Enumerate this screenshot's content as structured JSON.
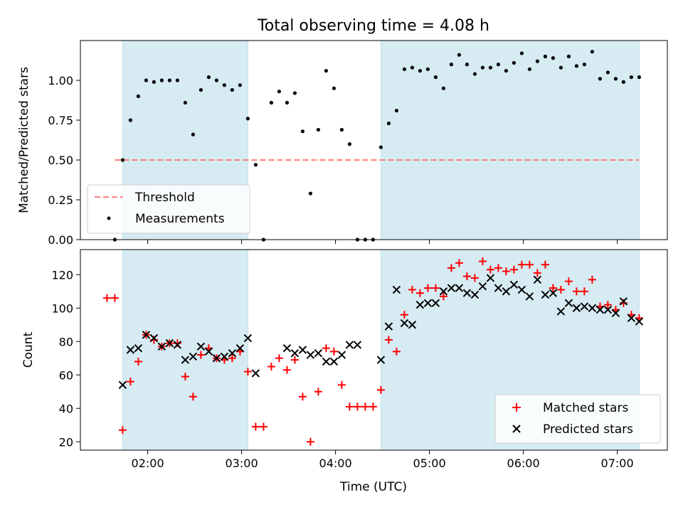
{
  "figure": {
    "title": "Total observing time = 4.08 h",
    "xlabel": "Time (UTC)",
    "xticks": [
      "02:00",
      "03:00",
      "04:00",
      "05:00",
      "06:00",
      "07:00"
    ],
    "shade_color": "#add8e6",
    "shaded_intervals": [
      [
        "01:44",
        "03:04"
      ],
      [
        "04:29",
        "07:14"
      ]
    ]
  },
  "chart_data": [
    {
      "type": "scatter",
      "ylabel": "Matched/Predicted stars",
      "ylim": [
        0,
        1.25
      ],
      "yticks": [
        "0.00",
        "0.25",
        "0.50",
        "0.75",
        "1.00"
      ],
      "xlim": [
        "01:17",
        "07:32"
      ],
      "legend_position": "lower-left",
      "threshold": {
        "name": "Threshold",
        "value": 0.5,
        "x_range": [
          "01:39",
          "07:14"
        ],
        "color": "#ff7f7f"
      },
      "series": [
        {
          "name": "Measurements",
          "color": "#000000",
          "x": [
            "01:39",
            "01:44",
            "01:49",
            "01:54",
            "01:59",
            "02:04",
            "02:09",
            "02:14",
            "02:19",
            "02:24",
            "02:29",
            "02:34",
            "02:39",
            "02:44",
            "02:49",
            "02:54",
            "02:59",
            "03:04",
            "03:09",
            "03:14",
            "03:19",
            "03:24",
            "03:29",
            "03:34",
            "03:39",
            "03:44",
            "03:49",
            "03:54",
            "03:59",
            "04:04",
            "04:09",
            "04:14",
            "04:19",
            "04:24",
            "04:29",
            "04:34",
            "04:39",
            "04:44",
            "04:49",
            "04:54",
            "04:59",
            "05:04",
            "05:09",
            "05:14",
            "05:19",
            "05:24",
            "05:29",
            "05:34",
            "05:39",
            "05:44",
            "05:49",
            "05:54",
            "05:59",
            "06:04",
            "06:09",
            "06:14",
            "06:19",
            "06:24",
            "06:29",
            "06:34",
            "06:39",
            "06:44",
            "06:49",
            "06:54",
            "06:59",
            "07:04",
            "07:09",
            "07:14"
          ],
          "y": [
            0.0,
            0.5,
            0.75,
            0.9,
            1.0,
            0.99,
            1.0,
            1.0,
            1.0,
            0.86,
            0.66,
            0.94,
            1.02,
            1.0,
            0.97,
            0.94,
            0.97,
            0.76,
            0.47,
            0.0,
            0.86,
            0.93,
            0.86,
            0.92,
            0.68,
            0.29,
            0.69,
            1.06,
            0.95,
            0.69,
            0.6,
            0.0,
            0.0,
            0.0,
            0.58,
            0.73,
            0.81,
            1.07,
            1.08,
            1.06,
            1.07,
            1.02,
            0.95,
            1.1,
            1.16,
            1.1,
            1.04,
            1.08,
            1.08,
            1.1,
            1.06,
            1.11,
            1.17,
            1.07,
            1.12,
            1.15,
            1.14,
            1.08,
            1.15,
            1.09,
            1.1,
            1.18,
            1.01,
            1.05,
            1.01,
            0.99,
            1.02,
            1.02
          ]
        }
      ]
    },
    {
      "type": "scatter",
      "ylabel": "Count",
      "ylim": [
        15,
        135
      ],
      "yticks": [
        "20",
        "40",
        "60",
        "80",
        "100",
        "120"
      ],
      "xlim": [
        "01:17",
        "07:32"
      ],
      "legend_position": "lower-right",
      "series": [
        {
          "name": "Matched stars",
          "marker": "+",
          "color": "#ff0000",
          "x": [
            "01:34",
            "01:39",
            "01:44",
            "01:49",
            "01:54",
            "01:59",
            "02:04",
            "02:09",
            "02:14",
            "02:19",
            "02:24",
            "02:29",
            "02:34",
            "02:39",
            "02:44",
            "02:49",
            "02:54",
            "02:59",
            "03:04",
            "03:09",
            "03:14",
            "03:19",
            "03:24",
            "03:29",
            "03:34",
            "03:39",
            "03:44",
            "03:49",
            "03:54",
            "03:59",
            "04:04",
            "04:09",
            "04:14",
            "04:19",
            "04:24",
            "04:29",
            "04:34",
            "04:39",
            "04:44",
            "04:49",
            "04:54",
            "04:59",
            "05:04",
            "05:09",
            "05:14",
            "05:19",
            "05:24",
            "05:29",
            "05:34",
            "05:39",
            "05:44",
            "05:49",
            "05:54",
            "05:59",
            "06:04",
            "06:09",
            "06:14",
            "06:19",
            "06:24",
            "06:29",
            "06:34",
            "06:39",
            "06:44",
            "06:49",
            "06:54",
            "06:59",
            "07:04",
            "07:09",
            "07:14"
          ],
          "y": [
            106,
            106,
            27,
            56,
            68,
            84,
            81,
            77,
            79,
            79,
            59,
            47,
            72,
            76,
            70,
            69,
            70,
            74,
            62,
            29,
            29,
            65,
            70,
            63,
            69,
            47,
            20,
            50,
            76,
            74,
            54,
            41,
            41,
            41,
            41,
            51,
            81,
            74,
            96,
            111,
            109,
            112,
            112,
            107,
            124,
            127,
            119,
            118,
            128,
            123,
            124,
            122,
            123,
            126,
            126,
            121,
            126,
            112,
            111,
            116,
            110,
            110,
            117,
            101,
            102,
            99,
            103,
            96,
            94
          ]
        },
        {
          "name": "Predicted stars",
          "marker": "x",
          "color": "#000000",
          "x": [
            "01:44",
            "01:49",
            "01:54",
            "01:59",
            "02:04",
            "02:09",
            "02:14",
            "02:19",
            "02:24",
            "02:29",
            "02:34",
            "02:39",
            "02:44",
            "02:49",
            "02:54",
            "02:59",
            "03:04",
            "03:09",
            "03:29",
            "03:34",
            "03:39",
            "03:44",
            "03:49",
            "03:54",
            "03:59",
            "04:04",
            "04:09",
            "04:14",
            "04:29",
            "04:34",
            "04:39",
            "04:44",
            "04:49",
            "04:54",
            "04:59",
            "05:04",
            "05:09",
            "05:14",
            "05:19",
            "05:24",
            "05:29",
            "05:34",
            "05:39",
            "05:44",
            "05:49",
            "05:54",
            "05:59",
            "06:04",
            "06:09",
            "06:14",
            "06:19",
            "06:24",
            "06:29",
            "06:34",
            "06:39",
            "06:44",
            "06:49",
            "06:54",
            "06:59",
            "07:04",
            "07:09",
            "07:14"
          ],
          "y": [
            54,
            75,
            76,
            84,
            82,
            77,
            79,
            78,
            69,
            71,
            77,
            74,
            70,
            71,
            73,
            76,
            82,
            61,
            76,
            73,
            75,
            72,
            73,
            68,
            68,
            72,
            78,
            78,
            69,
            89,
            111,
            91,
            90,
            102,
            103,
            103,
            110,
            112,
            112,
            109,
            108,
            113,
            118,
            112,
            110,
            114,
            111,
            107,
            117,
            108,
            109,
            98,
            103,
            100,
            101,
            100,
            99,
            99,
            97,
            104,
            94,
            92
          ]
        }
      ]
    }
  ]
}
